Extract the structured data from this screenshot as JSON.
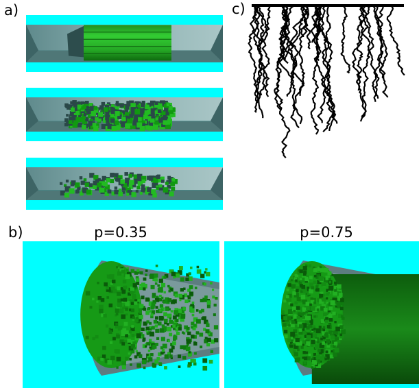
{
  "panels": {
    "a": {
      "label": "a)"
    },
    "b": {
      "label": "b)",
      "left": {
        "title": "p=0.35"
      },
      "right": {
        "title": "p=0.75"
      }
    },
    "c": {
      "label": "c)"
    }
  }
}
